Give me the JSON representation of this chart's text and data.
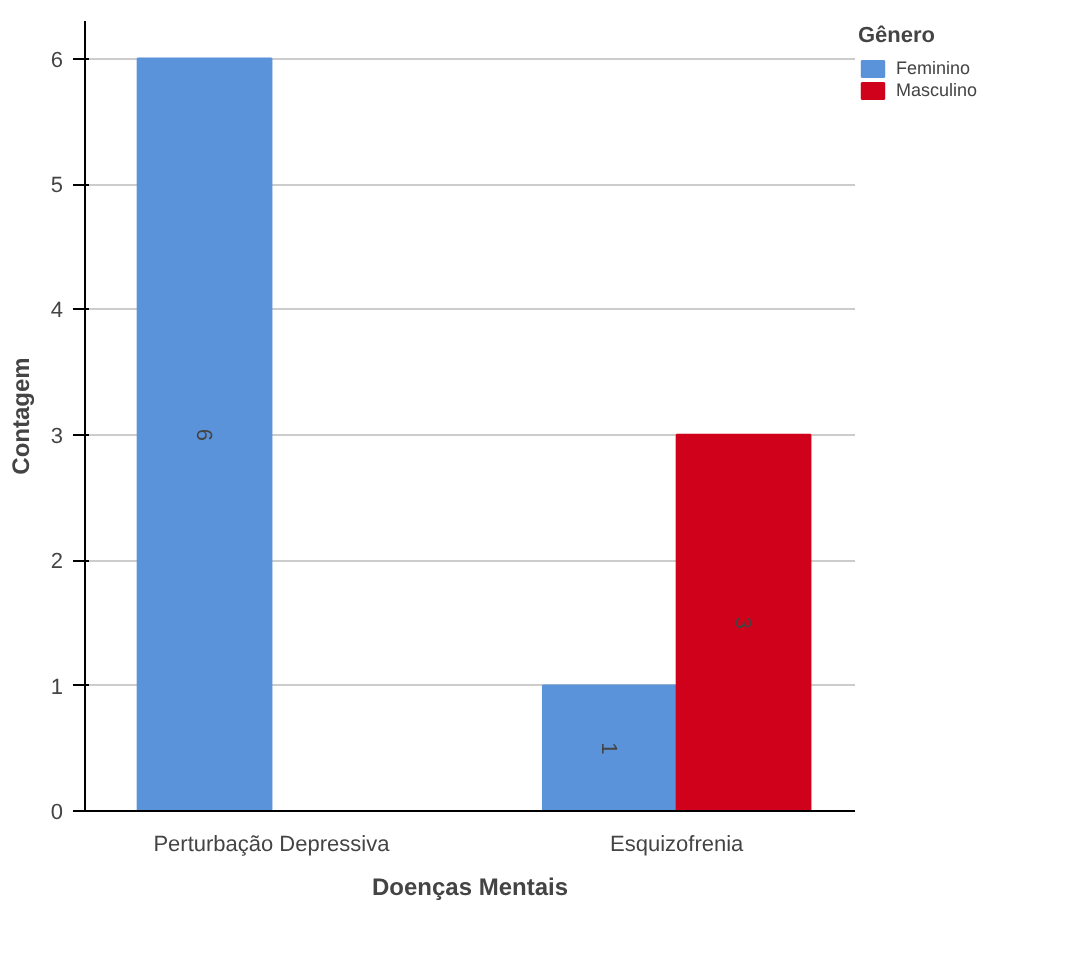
{
  "chart_data": {
    "type": "bar",
    "xlabel": "Doenças Mentais",
    "ylabel": "Contagem",
    "legend_title": "Gênero",
    "categories": [
      "Perturbação Depressiva",
      "Esquizofrenia"
    ],
    "series": [
      {
        "name": "Feminino",
        "color": "#5a93d9",
        "values": [
          6,
          1
        ],
        "value_labels": [
          "6",
          "1"
        ]
      },
      {
        "name": "Masculino",
        "color": "#d0021b",
        "values": [
          0,
          3
        ],
        "value_labels": [
          null,
          "3"
        ]
      }
    ],
    "ylim": [
      0,
      6.3
    ],
    "yticks": [
      0,
      1,
      2,
      3,
      4,
      5,
      6
    ],
    "grid": "y",
    "legend": "top right"
  }
}
